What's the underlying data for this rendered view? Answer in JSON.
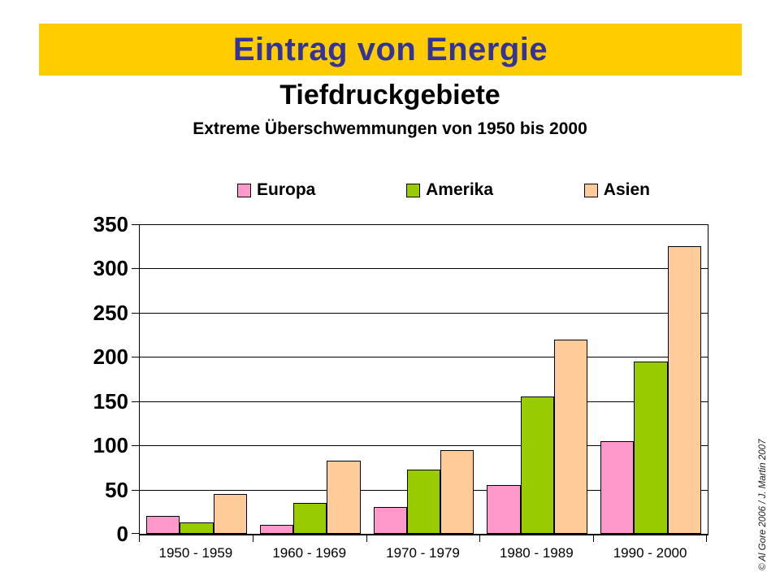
{
  "slide": {
    "title": "Eintrag von Energie",
    "subtitle": "Tiefdruckgebiete",
    "caption": "Extreme Überschwemmungen von 1950 bis 2000",
    "credit": "© Al Gore 2006 /  J. Martin 2007",
    "banner_color": "#FFCC00",
    "title_color": "#333399"
  },
  "chart_data": {
    "type": "bar",
    "title": "Extreme Überschwemmungen von 1950 bis 2000",
    "xlabel": "",
    "ylabel": "",
    "categories": [
      "1950 - 1959",
      "1960 - 1969",
      "1970 - 1979",
      "1980 - 1989",
      "1990 - 2000"
    ],
    "series": [
      {
        "name": "Europa",
        "color": "#FF99CC",
        "values": [
          20,
          10,
          30,
          55,
          105
        ]
      },
      {
        "name": "Amerika",
        "color": "#99CC00",
        "values": [
          13,
          35,
          73,
          155,
          195
        ]
      },
      {
        "name": "Asien",
        "color": "#FFCC99",
        "values": [
          45,
          83,
          95,
          220,
          325
        ]
      }
    ],
    "ylim": [
      0,
      350
    ],
    "ytick_step": 50,
    "grid": true,
    "bar_border_color": "#000000",
    "legend_position": "top"
  }
}
